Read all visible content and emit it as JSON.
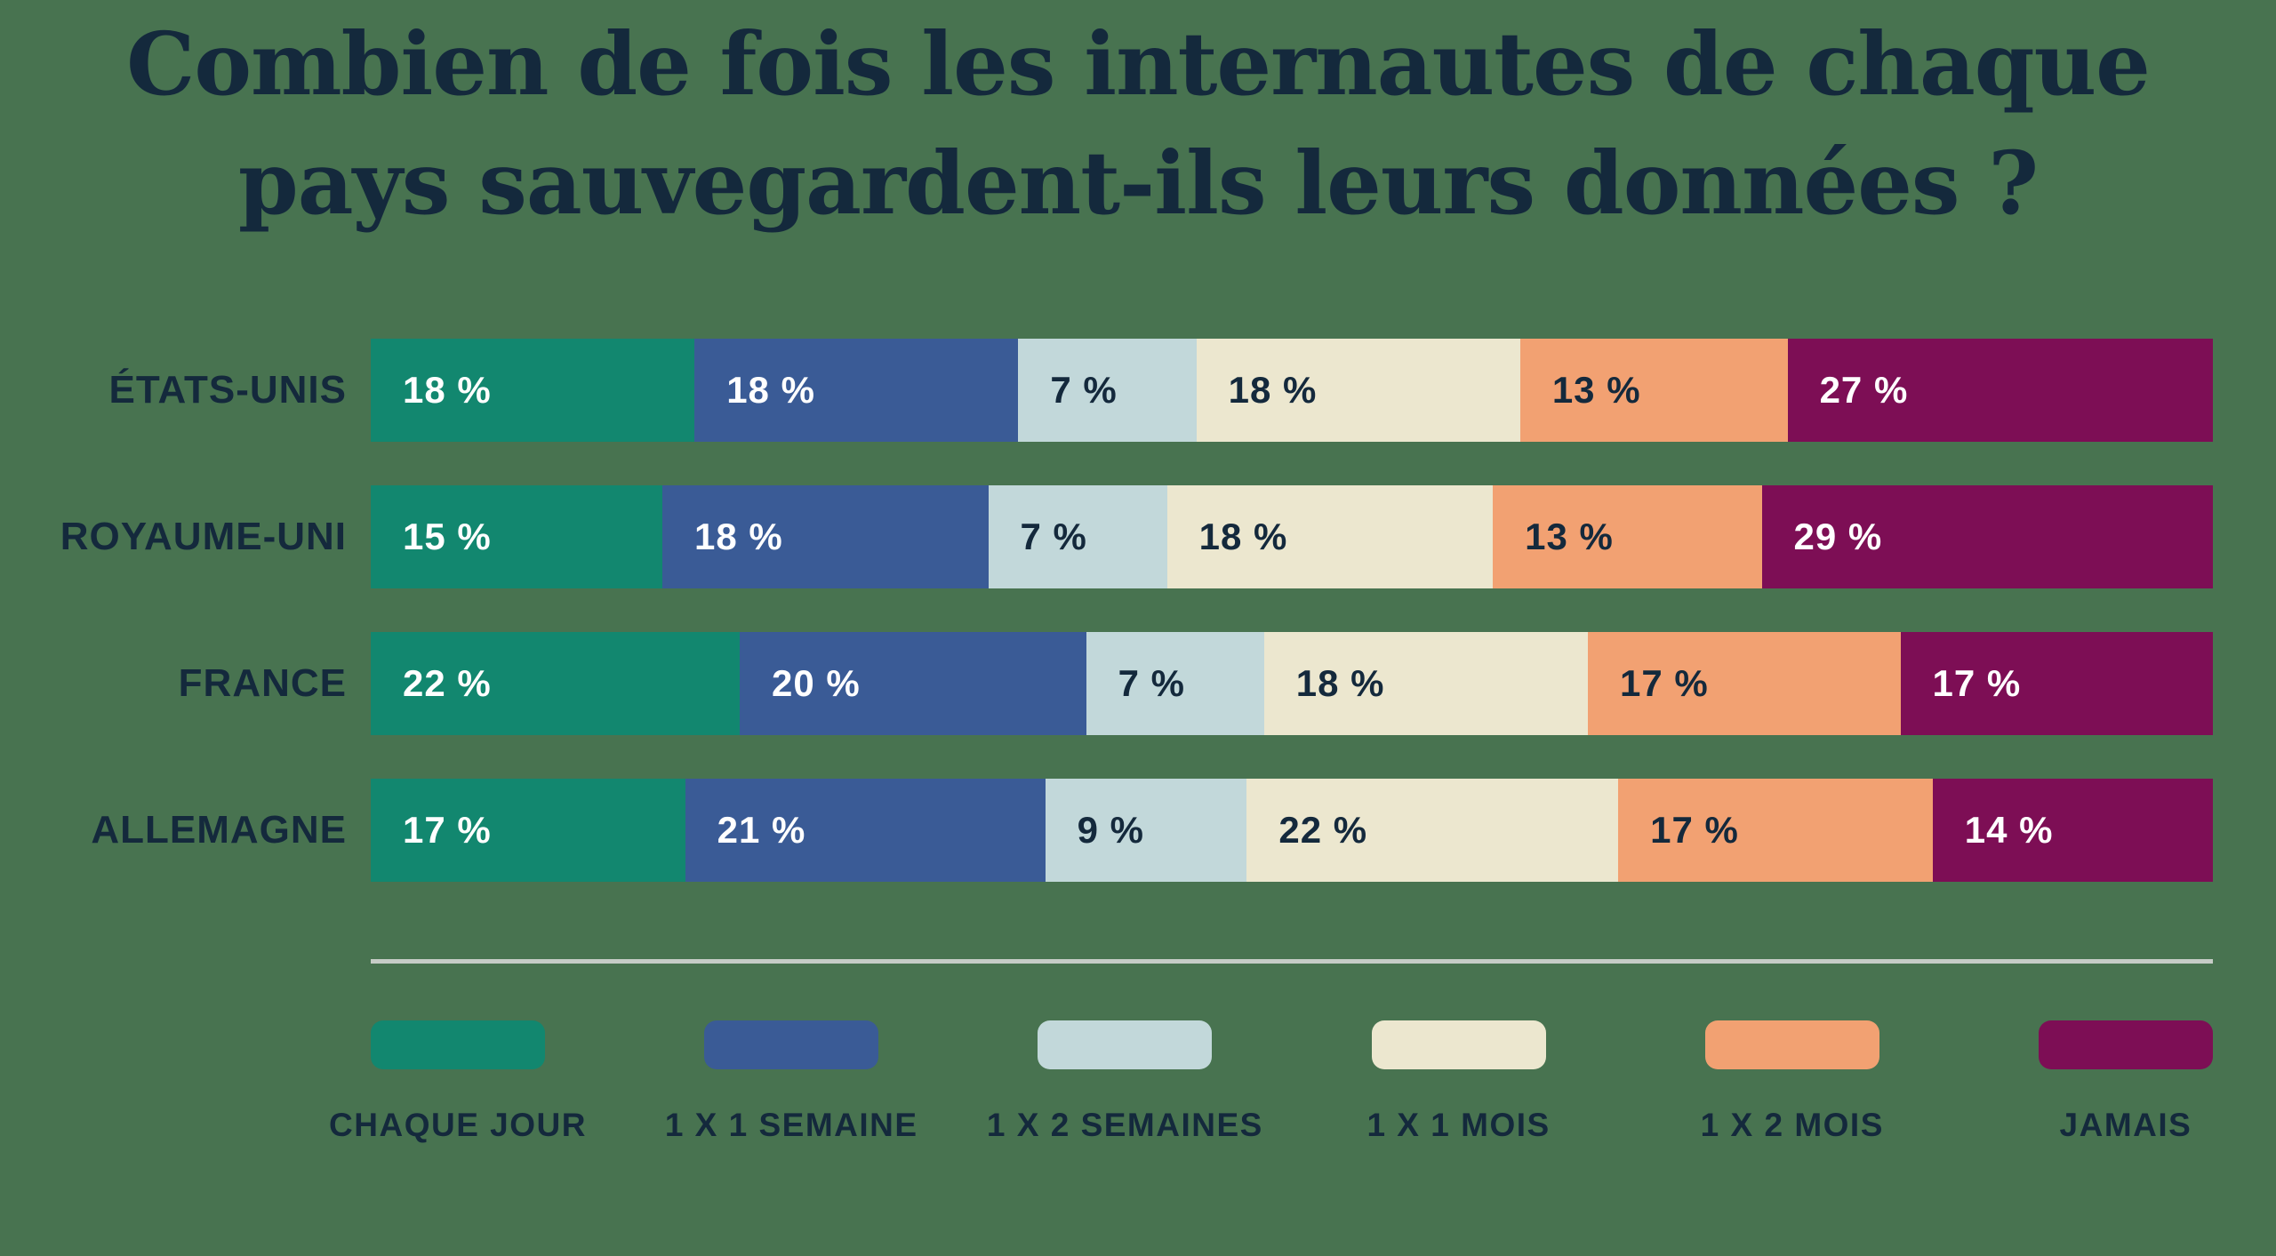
{
  "title": {
    "line1": "Combien de fois les internautes de chaque",
    "line2": "pays sauvegardent-ils leurs données ?"
  },
  "colors": {
    "background": "#487350",
    "text_dark": "#14293C",
    "text_light": "#FFFFFF",
    "divider": "#C6CCC6"
  },
  "chart_data": {
    "type": "bar",
    "stacked": true,
    "orientation": "horizontal",
    "unit": "%",
    "value_suffix": " %",
    "legend_position": "bottom",
    "grid": false,
    "categories": [
      "ÉTATS-UNIS",
      "ROYAUME-UNI",
      "FRANCE",
      "ALLEMAGNE"
    ],
    "series": [
      {
        "name": "CHAQUE JOUR",
        "color": "#12876F",
        "text_color": "#FFFFFF",
        "values": [
          18,
          15,
          22,
          17
        ]
      },
      {
        "name": "1 X 1 SEMAINE",
        "color": "#3A5B96",
        "text_color": "#FFFFFF",
        "values": [
          18,
          18,
          20,
          21
        ]
      },
      {
        "name": "1 X 2 SEMAINES",
        "color": "#C2D8DA",
        "text_color": "#14293C",
        "values": [
          7,
          7,
          7,
          9
        ]
      },
      {
        "name": "1 X 1 MOIS",
        "color": "#ECE7CF",
        "text_color": "#14293C",
        "values": [
          18,
          18,
          18,
          22
        ]
      },
      {
        "name": "1 X 2 MOIS",
        "color": "#F2A172",
        "text_color": "#14293C",
        "values": [
          13,
          13,
          17,
          17
        ]
      },
      {
        "name": "JAMAIS",
        "color": "#7D0E55",
        "text_color": "#FFFFFF",
        "values": [
          27,
          29,
          17,
          14
        ]
      }
    ]
  }
}
